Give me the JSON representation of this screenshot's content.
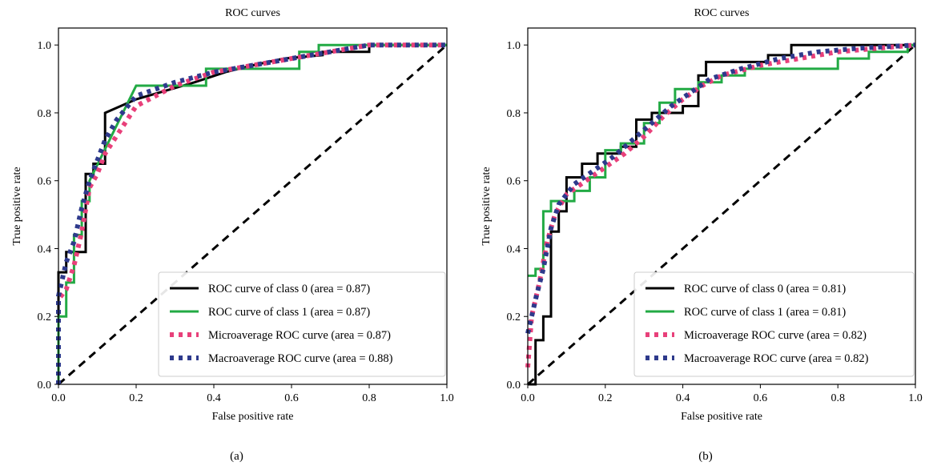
{
  "chart_data": [
    {
      "type": "line",
      "title": "ROC curves",
      "xlabel": "False positive rate",
      "ylabel": "True positive rate",
      "panel_label": "(a)",
      "xlim": [
        0.0,
        1.0
      ],
      "ylim": [
        0.0,
        1.05
      ],
      "xticks": [
        "0.0",
        "0.2",
        "0.4",
        "0.6",
        "0.8",
        "1.0"
      ],
      "yticks": [
        "0.0",
        "0.2",
        "0.4",
        "0.6",
        "0.8",
        "1.0"
      ],
      "legend_position": "lower-right",
      "series": [
        {
          "name": "ROC curve of class 0 (area = 0.87)",
          "color": "#000000",
          "style": "solid",
          "points": [
            [
              0,
              0
            ],
            [
              0,
              0.33
            ],
            [
              0.02,
              0.33
            ],
            [
              0.02,
              0.39
            ],
            [
              0.05,
              0.39
            ],
            [
              0.07,
              0.39
            ],
            [
              0.07,
              0.62
            ],
            [
              0.09,
              0.62
            ],
            [
              0.09,
              0.65
            ],
            [
              0.12,
              0.65
            ],
            [
              0.12,
              0.8
            ],
            [
              0.2,
              0.84
            ],
            [
              0.35,
              0.89
            ],
            [
              0.43,
              0.92
            ],
            [
              0.5,
              0.94
            ],
            [
              0.58,
              0.96
            ],
            [
              0.68,
              0.97
            ],
            [
              0.68,
              0.98
            ],
            [
              0.8,
              0.98
            ],
            [
              0.8,
              1.0
            ],
            [
              1.0,
              1.0
            ]
          ]
        },
        {
          "name": "ROC curve of class 1 (area = 0.87)",
          "color": "#22aa44",
          "style": "solid",
          "points": [
            [
              0,
              0
            ],
            [
              0,
              0.2
            ],
            [
              0.02,
              0.2
            ],
            [
              0.02,
              0.3
            ],
            [
              0.04,
              0.3
            ],
            [
              0.04,
              0.44
            ],
            [
              0.06,
              0.44
            ],
            [
              0.06,
              0.54
            ],
            [
              0.08,
              0.54
            ],
            [
              0.08,
              0.6
            ],
            [
              0.2,
              0.88
            ],
            [
              0.38,
              0.88
            ],
            [
              0.38,
              0.93
            ],
            [
              0.5,
              0.93
            ],
            [
              0.62,
              0.93
            ],
            [
              0.62,
              0.98
            ],
            [
              0.67,
              0.98
            ],
            [
              0.67,
              1.0
            ],
            [
              1.0,
              1.0
            ]
          ]
        },
        {
          "name": "Microaverage ROC curve (area = 0.87)",
          "color": "#e8407a",
          "style": "dotted",
          "points": [
            [
              0,
              0
            ],
            [
              0,
              0.25
            ],
            [
              0.02,
              0.28
            ],
            [
              0.04,
              0.35
            ],
            [
              0.06,
              0.45
            ],
            [
              0.08,
              0.58
            ],
            [
              0.1,
              0.62
            ],
            [
              0.12,
              0.68
            ],
            [
              0.16,
              0.75
            ],
            [
              0.2,
              0.82
            ],
            [
              0.3,
              0.88
            ],
            [
              0.4,
              0.92
            ],
            [
              0.5,
              0.94
            ],
            [
              0.6,
              0.96
            ],
            [
              0.7,
              0.98
            ],
            [
              0.8,
              1.0
            ],
            [
              1.0,
              1.0
            ]
          ]
        },
        {
          "name": "Macroaverage ROC curve (area = 0.88)",
          "color": "#2e3a8c",
          "style": "dotted",
          "points": [
            [
              0,
              0
            ],
            [
              0,
              0.26
            ],
            [
              0.02,
              0.36
            ],
            [
              0.04,
              0.42
            ],
            [
              0.06,
              0.52
            ],
            [
              0.08,
              0.6
            ],
            [
              0.1,
              0.66
            ],
            [
              0.12,
              0.72
            ],
            [
              0.15,
              0.78
            ],
            [
              0.2,
              0.85
            ],
            [
              0.3,
              0.89
            ],
            [
              0.4,
              0.92
            ],
            [
              0.5,
              0.94
            ],
            [
              0.6,
              0.96
            ],
            [
              0.7,
              0.98
            ],
            [
              0.8,
              1.0
            ],
            [
              1.0,
              1.0
            ]
          ]
        }
      ]
    },
    {
      "type": "line",
      "title": "ROC curves",
      "xlabel": "False positive rate",
      "ylabel": "True positive rate",
      "panel_label": "(b)",
      "xlim": [
        0.0,
        1.0
      ],
      "ylim": [
        0.0,
        1.05
      ],
      "xticks": [
        "0.0",
        "0.2",
        "0.4",
        "0.6",
        "0.8",
        "1.0"
      ],
      "yticks": [
        "0.0",
        "0.2",
        "0.4",
        "0.6",
        "0.8",
        "1.0"
      ],
      "legend_position": "lower-right",
      "series": [
        {
          "name": "ROC curve of class 0 (area = 0.81)",
          "color": "#000000",
          "style": "solid",
          "points": [
            [
              0,
              0
            ],
            [
              0.02,
              0
            ],
            [
              0.02,
              0.13
            ],
            [
              0.04,
              0.13
            ],
            [
              0.04,
              0.2
            ],
            [
              0.06,
              0.2
            ],
            [
              0.06,
              0.45
            ],
            [
              0.08,
              0.45
            ],
            [
              0.08,
              0.51
            ],
            [
              0.1,
              0.51
            ],
            [
              0.1,
              0.61
            ],
            [
              0.14,
              0.61
            ],
            [
              0.14,
              0.65
            ],
            [
              0.18,
              0.65
            ],
            [
              0.18,
              0.68
            ],
            [
              0.24,
              0.68
            ],
            [
              0.24,
              0.7
            ],
            [
              0.28,
              0.7
            ],
            [
              0.28,
              0.78
            ],
            [
              0.32,
              0.78
            ],
            [
              0.32,
              0.8
            ],
            [
              0.4,
              0.8
            ],
            [
              0.4,
              0.82
            ],
            [
              0.44,
              0.82
            ],
            [
              0.44,
              0.91
            ],
            [
              0.46,
              0.91
            ],
            [
              0.46,
              0.95
            ],
            [
              0.62,
              0.95
            ],
            [
              0.62,
              0.97
            ],
            [
              0.68,
              0.97
            ],
            [
              0.68,
              1.0
            ],
            [
              1.0,
              1.0
            ]
          ]
        },
        {
          "name": "ROC curve of class 1 (area = 0.81)",
          "color": "#22aa44",
          "style": "solid",
          "points": [
            [
              0,
              0.32
            ],
            [
              0.02,
              0.32
            ],
            [
              0.02,
              0.34
            ],
            [
              0.04,
              0.34
            ],
            [
              0.04,
              0.51
            ],
            [
              0.06,
              0.51
            ],
            [
              0.06,
              0.54
            ],
            [
              0.12,
              0.54
            ],
            [
              0.12,
              0.57
            ],
            [
              0.16,
              0.57
            ],
            [
              0.16,
              0.61
            ],
            [
              0.2,
              0.61
            ],
            [
              0.2,
              0.69
            ],
            [
              0.24,
              0.69
            ],
            [
              0.24,
              0.71
            ],
            [
              0.3,
              0.71
            ],
            [
              0.3,
              0.77
            ],
            [
              0.34,
              0.77
            ],
            [
              0.34,
              0.83
            ],
            [
              0.38,
              0.83
            ],
            [
              0.38,
              0.87
            ],
            [
              0.44,
              0.87
            ],
            [
              0.44,
              0.89
            ],
            [
              0.5,
              0.89
            ],
            [
              0.5,
              0.91
            ],
            [
              0.56,
              0.91
            ],
            [
              0.56,
              0.93
            ],
            [
              0.8,
              0.93
            ],
            [
              0.8,
              0.96
            ],
            [
              0.88,
              0.96
            ],
            [
              0.88,
              0.98
            ],
            [
              0.98,
              0.98
            ],
            [
              0.98,
              1.0
            ],
            [
              1.0,
              1.0
            ]
          ]
        },
        {
          "name": "Microaverage ROC curve (area = 0.82)",
          "color": "#e8407a",
          "style": "dotted",
          "points": [
            [
              0,
              0.05
            ],
            [
              0.01,
              0.2
            ],
            [
              0.03,
              0.3
            ],
            [
              0.05,
              0.42
            ],
            [
              0.07,
              0.5
            ],
            [
              0.1,
              0.56
            ],
            [
              0.15,
              0.6
            ],
            [
              0.2,
              0.64
            ],
            [
              0.25,
              0.68
            ],
            [
              0.3,
              0.73
            ],
            [
              0.35,
              0.79
            ],
            [
              0.4,
              0.84
            ],
            [
              0.45,
              0.88
            ],
            [
              0.5,
              0.91
            ],
            [
              0.6,
              0.94
            ],
            [
              0.7,
              0.96
            ],
            [
              0.8,
              0.98
            ],
            [
              0.9,
              0.99
            ],
            [
              1.0,
              1.0
            ]
          ]
        },
        {
          "name": "Macroaverage ROC curve (area = 0.82)",
          "color": "#2e3a8c",
          "style": "dotted",
          "points": [
            [
              0,
              0.15
            ],
            [
              0.02,
              0.25
            ],
            [
              0.04,
              0.34
            ],
            [
              0.06,
              0.46
            ],
            [
              0.08,
              0.53
            ],
            [
              0.12,
              0.59
            ],
            [
              0.17,
              0.63
            ],
            [
              0.22,
              0.67
            ],
            [
              0.27,
              0.72
            ],
            [
              0.32,
              0.77
            ],
            [
              0.37,
              0.82
            ],
            [
              0.42,
              0.86
            ],
            [
              0.47,
              0.9
            ],
            [
              0.55,
              0.93
            ],
            [
              0.65,
              0.96
            ],
            [
              0.75,
              0.98
            ],
            [
              0.85,
              0.99
            ],
            [
              1.0,
              1.0
            ]
          ]
        }
      ]
    }
  ]
}
